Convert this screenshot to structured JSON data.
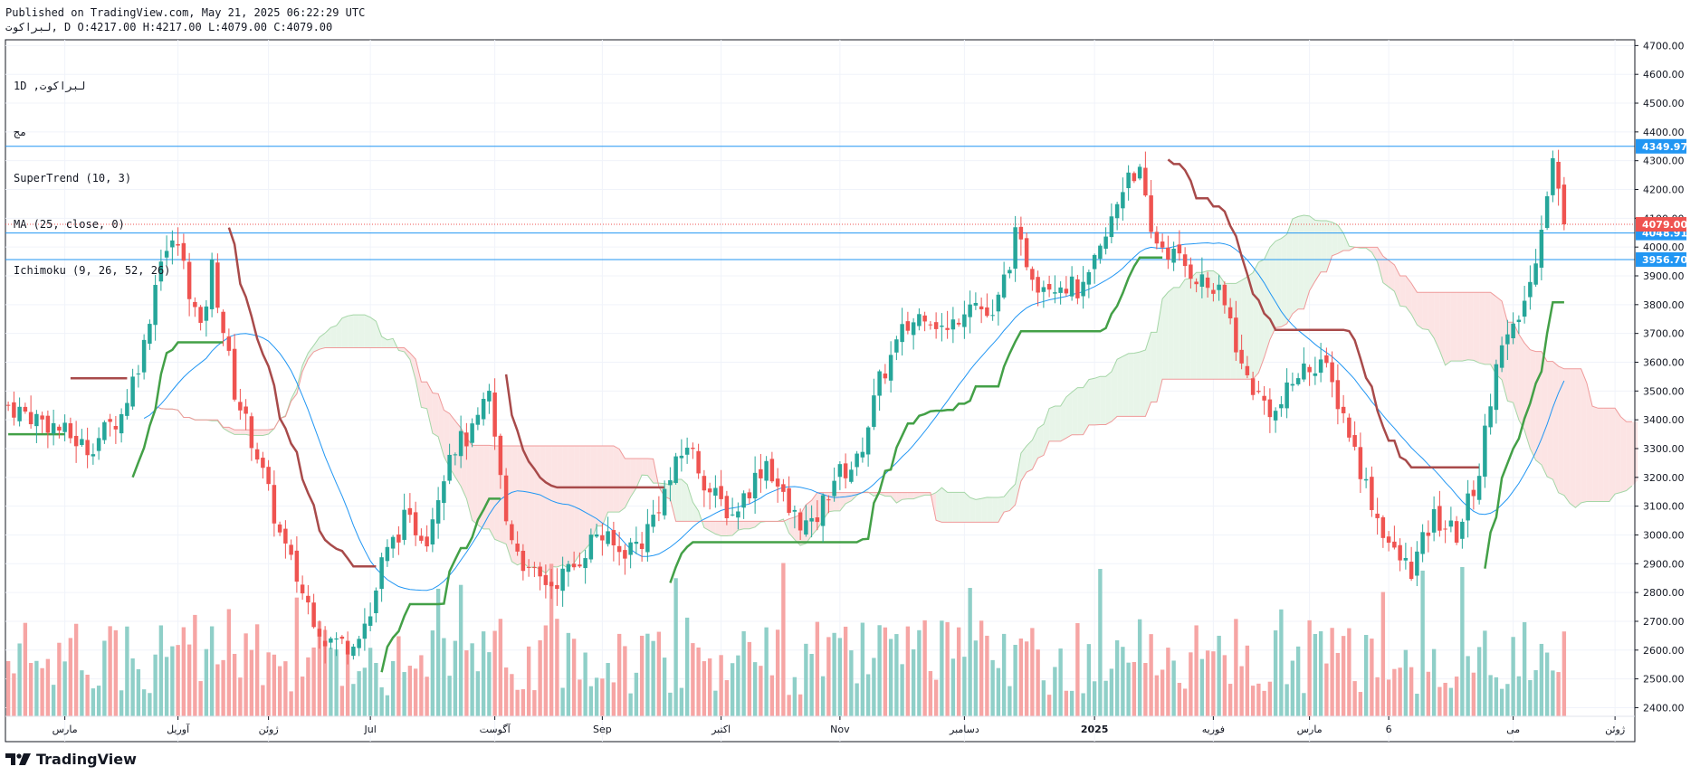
{
  "header": {
    "published": "Published on TradingView.com, May 21, 2025 06:22:29 UTC",
    "ohlc_line": "لبراكوت, D O:4217.00 H:4217.00 L:4079.00 C:4079.00"
  },
  "legend": {
    "symbol_line": "1D ,لبراكوت",
    "exchange": "مج",
    "supertrend": "SuperTrend (10, 3)",
    "ma": "MA (25, close, 0)",
    "ichimoku": "Ichimoku (9, 26, 52, 26)"
  },
  "logo": {
    "text": "TradingView",
    "icon": "tradingview-logo-icon"
  },
  "colors": {
    "up": "#26a69a",
    "down": "#ef5350",
    "vol_up": "#8fcfc8",
    "vol_down": "#f6a5a4",
    "supertrend_up": "#43a047",
    "supertrend_down": "#a84a4a",
    "ma": "#2196f3",
    "cloud_green": "#e8f5e9",
    "cloud_red": "#fce4e4",
    "hline": "#2196f3"
  },
  "chart_data": {
    "type": "candlestick",
    "ylim": [
      2370,
      4720
    ],
    "y_ticks": [
      2400,
      2500,
      2600,
      2700,
      2800,
      2900,
      3000,
      3100,
      3200,
      3300,
      3400,
      3500,
      3600,
      3700,
      3800,
      3900,
      4000,
      4100,
      4200,
      4300,
      4400,
      4500,
      4600,
      4700
    ],
    "x_labels": [
      {
        "label": "مارس",
        "idx": 10
      },
      {
        "label": "آوريل",
        "idx": 30
      },
      {
        "label": "ژوئن",
        "idx": 46
      },
      {
        "label": "Jul",
        "idx": 64
      },
      {
        "label": "آگوست",
        "idx": 86
      },
      {
        "label": "Sep",
        "idx": 105
      },
      {
        "label": "اکتبر",
        "idx": 126
      },
      {
        "label": "Nov",
        "idx": 147
      },
      {
        "label": "دسامبر",
        "idx": 169
      },
      {
        "label": "2025",
        "idx": 192
      },
      {
        "label": "فوريه",
        "idx": 213
      },
      {
        "label": "مارس",
        "idx": 230
      },
      {
        "label": "6",
        "idx": 244
      },
      {
        "label": "مى",
        "idx": 266
      },
      {
        "label": "ژوئن",
        "idx": 284
      }
    ],
    "n_bars": 276,
    "price_anchors": [
      [
        0,
        3450
      ],
      [
        8,
        3380
      ],
      [
        14,
        3300
      ],
      [
        20,
        3420
      ],
      [
        24,
        3660
      ],
      [
        27,
        3980
      ],
      [
        30,
        4010
      ],
      [
        34,
        3700
      ],
      [
        36,
        3930
      ],
      [
        40,
        3500
      ],
      [
        44,
        3280
      ],
      [
        48,
        3000
      ],
      [
        52,
        2800
      ],
      [
        56,
        2640
      ],
      [
        60,
        2620
      ],
      [
        64,
        2720
      ],
      [
        66,
        2900
      ],
      [
        70,
        3050
      ],
      [
        74,
        3000
      ],
      [
        78,
        3300
      ],
      [
        82,
        3350
      ],
      [
        85,
        3480
      ],
      [
        88,
        3050
      ],
      [
        92,
        2860
      ],
      [
        96,
        2830
      ],
      [
        100,
        2890
      ],
      [
        104,
        3010
      ],
      [
        108,
        2940
      ],
      [
        112,
        2980
      ],
      [
        116,
        3150
      ],
      [
        120,
        3320
      ],
      [
        124,
        3150
      ],
      [
        128,
        3070
      ],
      [
        134,
        3260
      ],
      [
        138,
        3080
      ],
      [
        142,
        3020
      ],
      [
        146,
        3200
      ],
      [
        150,
        3250
      ],
      [
        154,
        3530
      ],
      [
        158,
        3700
      ],
      [
        162,
        3780
      ],
      [
        166,
        3700
      ],
      [
        170,
        3830
      ],
      [
        174,
        3740
      ],
      [
        178,
        4030
      ],
      [
        182,
        3880
      ],
      [
        186,
        3880
      ],
      [
        190,
        3840
      ],
      [
        194,
        4030
      ],
      [
        198,
        4270
      ],
      [
        200,
        4250
      ],
      [
        202,
        4040
      ],
      [
        206,
        3970
      ],
      [
        210,
        3900
      ],
      [
        214,
        3830
      ],
      [
        216,
        3750
      ],
      [
        218,
        3580
      ],
      [
        221,
        3480
      ],
      [
        224,
        3420
      ],
      [
        228,
        3560
      ],
      [
        232,
        3610
      ],
      [
        236,
        3420
      ],
      [
        239,
        3230
      ],
      [
        242,
        3060
      ],
      [
        245,
        2930
      ],
      [
        248,
        2880
      ],
      [
        252,
        3060
      ],
      [
        256,
        3000
      ],
      [
        260,
        3220
      ],
      [
        263,
        3620
      ],
      [
        266,
        3700
      ],
      [
        269,
        3870
      ],
      [
        272,
        4200
      ],
      [
        273,
        4300
      ],
      [
        275,
        4079
      ]
    ],
    "ma_period": 25,
    "supertrend": {
      "atr_period": 10,
      "multiplier": 3
    },
    "ichimoku": {
      "conversion": 9,
      "base": 26,
      "span_b": 52,
      "displacement": 26
    },
    "horizontal_lines": [
      {
        "price": 4349.97,
        "label": "4349.97",
        "color": "#2196f3"
      },
      {
        "price": 4048.91,
        "label": "4048.91",
        "color": "#2196f3"
      },
      {
        "price": 3956.7,
        "label": "3956.70",
        "color": "#2196f3"
      }
    ],
    "last_price": {
      "price": 4079.0,
      "label": "4079.00",
      "color": "#ef5350"
    },
    "volume_max_px": 155
  }
}
